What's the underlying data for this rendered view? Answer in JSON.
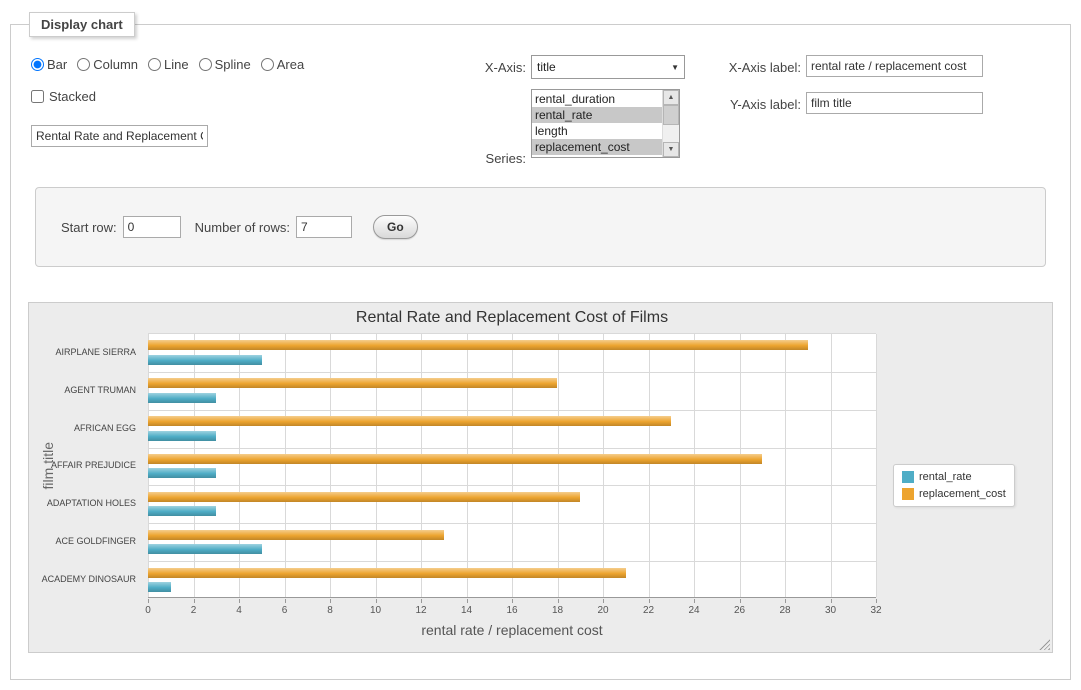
{
  "panel": {
    "legend": "Display chart",
    "chart_types": [
      {
        "label": "Bar",
        "selected": true
      },
      {
        "label": "Column",
        "selected": false
      },
      {
        "label": "Line",
        "selected": false
      },
      {
        "label": "Spline",
        "selected": false
      },
      {
        "label": "Area",
        "selected": false
      }
    ],
    "stacked": {
      "label": "Stacked",
      "checked": false
    },
    "title_value": "Rental Rate and Replacement Cost of Films",
    "x_axis": {
      "label": "X-Axis:",
      "selected": "title"
    },
    "series": {
      "label": "Series:",
      "options": [
        {
          "label": "rental_duration",
          "selected": false
        },
        {
          "label": "rental_rate",
          "selected": true
        },
        {
          "label": "length",
          "selected": false
        },
        {
          "label": "replacement_cost",
          "selected": true
        }
      ]
    },
    "x_axis_label": {
      "label": "X-Axis label:",
      "value": "rental rate / replacement cost"
    },
    "y_axis_label": {
      "label": "Y-Axis label:",
      "value": "film title"
    }
  },
  "rows_form": {
    "start_row": {
      "label": "Start row:",
      "value": "0"
    },
    "number_of_rows": {
      "label": "Number of rows:",
      "value": "7"
    },
    "go_button": "Go"
  },
  "chart_data": {
    "type": "bar",
    "title": "Rental Rate and Replacement Cost of Films",
    "categories": [
      "AIRPLANE SIERRA",
      "AGENT TRUMAN",
      "AFRICAN EGG",
      "AFFAIR PREJUDICE",
      "ADAPTATION HOLES",
      "ACE GOLDFINGER",
      "ACADEMY DINOSAUR"
    ],
    "series": [
      {
        "name": "rental_rate",
        "color": "#4fadc6",
        "values": [
          4.99,
          2.99,
          2.99,
          2.99,
          2.99,
          4.99,
          0.99
        ]
      },
      {
        "name": "replacement_cost",
        "color": "#eda42f",
        "values": [
          28.99,
          17.99,
          22.99,
          26.99,
          18.99,
          12.99,
          20.99
        ]
      }
    ],
    "xlabel": "rental rate / replacement cost",
    "ylabel": "film title",
    "xlim": [
      0,
      32
    ],
    "xtick_step": 2,
    "grid": true,
    "legend_position": "right"
  }
}
